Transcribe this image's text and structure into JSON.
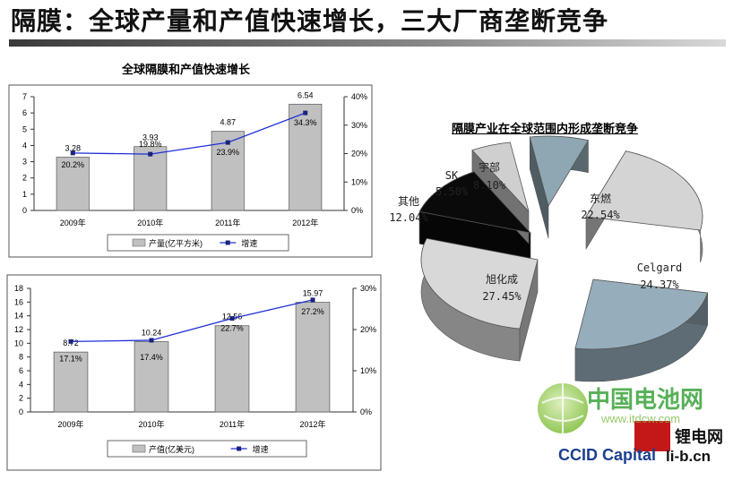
{
  "page": {
    "title": "隔膜：全球产量和产值快速增长，三大厂商垄断竞争"
  },
  "watermark": {
    "cn_text": "中国电池网",
    "url_text": "www.itdcw.com",
    "en_text": "CCID Capital",
    "logo2_text": "锂电网",
    "logo2_url": "li-b.cn"
  },
  "chart_data": [
    {
      "type": "bar",
      "title": "全球隔膜和产值快速增长",
      "categories": [
        "2009年",
        "2010年",
        "2011年",
        "2012年"
      ],
      "series": [
        {
          "name": "产量(亿平方米)",
          "axis": "left",
          "values": [
            3.28,
            3.93,
            4.87,
            6.54
          ],
          "color": "#c0c0c0"
        },
        {
          "name": "增速",
          "axis": "right",
          "type": "line",
          "values": [
            20.2,
            19.8,
            23.9,
            34.3
          ],
          "value_labels": [
            "20.2%",
            "19.8%",
            "23.9%",
            "34.3%"
          ],
          "color": "#1f2fd8"
        }
      ],
      "ylim": [
        0,
        7
      ],
      "yticks": [
        0,
        1,
        2,
        3,
        4,
        5,
        6,
        7
      ],
      "y2lim": [
        0,
        40
      ],
      "y2ticks": [
        "0%",
        "10%",
        "20%",
        "30%",
        "40%"
      ],
      "legend": "bottom"
    },
    {
      "type": "bar",
      "title": "",
      "categories": [
        "2009年",
        "2010年",
        "2011年",
        "2012年"
      ],
      "series": [
        {
          "name": "产值(亿美元)",
          "axis": "left",
          "values": [
            8.72,
            10.24,
            12.56,
            15.97
          ],
          "color": "#c0c0c0"
        },
        {
          "name": "增速",
          "axis": "right",
          "type": "line",
          "values": [
            17.1,
            17.4,
            22.7,
            27.2
          ],
          "value_labels": [
            "17.1%",
            "17.4%",
            "22.7%",
            "27.2%"
          ],
          "color": "#1f2fd8"
        }
      ],
      "ylim": [
        0,
        18
      ],
      "yticks": [
        0,
        2,
        4,
        6,
        8,
        10,
        12,
        14,
        16,
        18
      ],
      "y2lim": [
        0,
        30
      ],
      "y2ticks": [
        "0%",
        "10%",
        "20%",
        "30%"
      ],
      "legend": "bottom"
    },
    {
      "type": "pie",
      "title": "隔膜产业在全球范围内形成垄断竞争",
      "slices": [
        {
          "label": "东燃",
          "value": 22.54,
          "text": "22.54%",
          "color": "#d4d4d4"
        },
        {
          "label": "Celgard",
          "value": 24.37,
          "text": "24.37%",
          "color": "#96aebc"
        },
        {
          "label": "旭化成",
          "value": 27.45,
          "text": "27.45%",
          "color": "#d8d8d8"
        },
        {
          "label": "其他",
          "value": 12.04,
          "text": "12.04%",
          "color": "#0a0a0a"
        },
        {
          "label": "SK",
          "value": 5.5,
          "text": "5.50%",
          "color": "#cfcfcf"
        },
        {
          "label": "宇部",
          "value": 8.1,
          "text": "8.10%",
          "color": "#8fa7b3"
        }
      ]
    }
  ]
}
